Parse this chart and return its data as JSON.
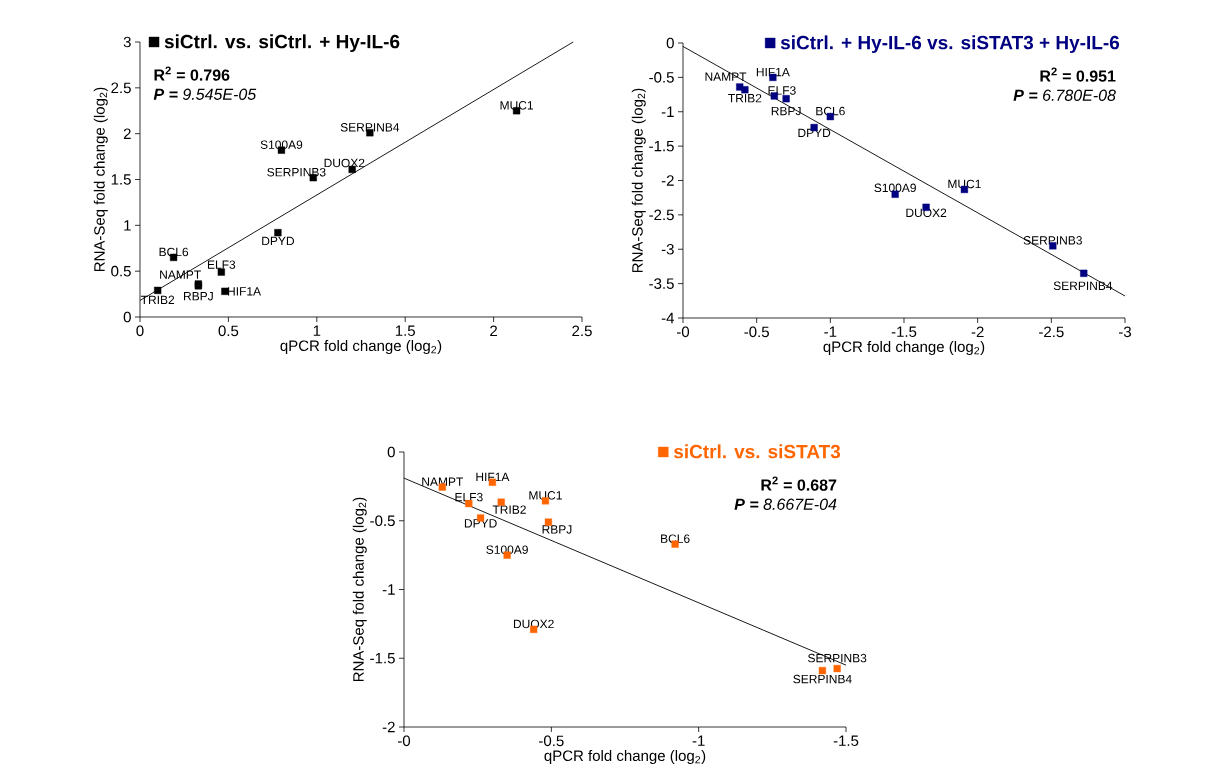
{
  "chart_data": [
    {
      "type": "scatter",
      "xlabel": "qPCR fold change (log$_{2}$)",
      "ylabel": "RNA-Seq fold change (log$_{2}$)",
      "xlim": [
        0,
        2.5
      ],
      "ylim": [
        0,
        3
      ],
      "xticks": [
        0,
        0.5,
        1,
        1.5,
        2,
        2.5
      ],
      "yticks": [
        0,
        0.5,
        1,
        1.5,
        2,
        2.5,
        3
      ],
      "legend": "top left",
      "series": [
        {
          "type": "line",
          "color": "#000000",
          "x": [
            0,
            2.45
          ],
          "values": [
            0.18,
            3.0
          ]
        },
        {
          "name": "siCtrl. vs. siCtrl. + Hy-IL-6",
          "color": "#000000",
          "marker": "square",
          "x": [
            2.13,
            1.3,
            0.8,
            0.98,
            1.2,
            0.78,
            0.19,
            0.46,
            0.33,
            0.33,
            0.48,
            0.1
          ],
          "values": [
            2.25,
            2.01,
            1.82,
            1.52,
            1.61,
            0.92,
            0.65,
            0.49,
            0.36,
            0.34,
            0.28,
            0.29
          ]
        }
      ],
      "annotations": [
        "R$^{2}$ = 0.796",
        "**P =** 9.545E-05",
        {
          "text": "MUC1",
          "x": 2.13,
          "y": 2.25
        },
        {
          "text": "SERPINB4",
          "x": 1.3,
          "y": 2.01
        },
        {
          "text": "S100A9",
          "x": 0.8,
          "y": 1.82
        },
        {
          "text": "SERPINB3",
          "x": 0.98,
          "y": 1.52
        },
        {
          "text": "DUOX2",
          "x": 1.2,
          "y": 1.61
        },
        {
          "text": "DPYD",
          "x": 0.78,
          "y": 0.92
        },
        {
          "text": "BCL6",
          "x": 0.19,
          "y": 0.65
        },
        {
          "text": "ELF3",
          "x": 0.46,
          "y": 0.49
        },
        {
          "text": "NAMPT",
          "x": 0.33,
          "y": 0.36
        },
        {
          "text": "RBPJ",
          "x": 0.33,
          "y": 0.34
        },
        {
          "text": "HIF1A",
          "x": 0.48,
          "y": 0.28
        },
        {
          "text": "TRIB2",
          "x": 0.1,
          "y": 0.29
        }
      ]
    },
    {
      "type": "scatter",
      "xlabel": "qPCR fold change (log$_{2}$)",
      "ylabel": "RNA-Seq fold change (log$_{2}$)",
      "xlim": [
        0,
        -3
      ],
      "ylim": [
        -4,
        0
      ],
      "xticks": [
        {
          "value": 0,
          "label": "-0"
        },
        -0.5,
        -1,
        -1.5,
        -2,
        -2.5,
        -3
      ],
      "yticks": [
        -4,
        -3.5,
        -3,
        -2.5,
        -2,
        -1.5,
        -1,
        -0.5,
        0
      ],
      "legend": "top right",
      "series": [
        {
          "type": "line",
          "color": "#000000",
          "x": [
            0,
            -3
          ],
          "values": [
            -0.05,
            -3.68
          ]
        },
        {
          "name": "siCtrl. + Hy-IL-6 vs. siSTAT3 + Hy-IL-6",
          "color": "#000080",
          "marker": "square",
          "x": [
            -0.385,
            -0.42,
            -0.61,
            -0.62,
            -0.7,
            -1.0,
            -0.89,
            -1.44,
            -1.65,
            -1.91,
            -2.51,
            -2.72
          ],
          "values": [
            -0.64,
            -0.68,
            -0.5,
            -0.77,
            -0.81,
            -1.07,
            -1.23,
            -2.2,
            -2.39,
            -2.13,
            -2.95,
            -3.35
          ]
        }
      ],
      "annotations": [
        "R$^{2}$ = 0.951",
        "**P =** 6.780E-08",
        {
          "text": "NAMPT",
          "x": -0.385,
          "y": -0.64
        },
        {
          "text": "TRIB2",
          "x": -0.42,
          "y": -0.68
        },
        {
          "text": "HIF1A",
          "x": -0.61,
          "y": -0.5
        },
        {
          "text": "ELF3",
          "x": -0.62,
          "y": -0.77
        },
        {
          "text": "RBPJ",
          "x": -0.7,
          "y": -0.81
        },
        {
          "text": "BCL6",
          "x": -1.0,
          "y": -1.07
        },
        {
          "text": "DPYD",
          "x": -0.89,
          "y": -1.23
        },
        {
          "text": "S100A9",
          "x": -1.44,
          "y": -2.2
        },
        {
          "text": "DUOX2",
          "x": -1.65,
          "y": -2.39
        },
        {
          "text": "MUC1",
          "x": -1.91,
          "y": -2.13
        },
        {
          "text": "SERPINB3",
          "x": -2.51,
          "y": -2.95
        },
        {
          "text": "SERPINB4",
          "x": -2.72,
          "y": -3.35
        }
      ]
    },
    {
      "type": "scatter",
      "xlabel": "qPCR fold change (log$_{2}$)",
      "ylabel": "RNA-Seq fold change (log$_{2}$)",
      "xlim": [
        0,
        -1.5
      ],
      "ylim": [
        -2,
        0
      ],
      "xticks": [
        {
          "value": 0,
          "label": "-0"
        },
        -0.5,
        -1,
        -1.5
      ],
      "yticks": [
        -2,
        -1.5,
        -1,
        -0.5,
        0
      ],
      "legend": "top right",
      "series": [
        {
          "type": "line",
          "color": "#000000",
          "x": [
            0,
            -1.5
          ],
          "values": [
            -0.19,
            -1.55
          ]
        },
        {
          "name": "siCtrl. vs. siSTAT3",
          "color": "#ff6600",
          "marker": "square",
          "x": [
            -0.13,
            -0.3,
            -0.22,
            -0.33,
            -0.48,
            -0.26,
            -0.49,
            -0.35,
            -0.92,
            -0.44,
            -1.47,
            -1.42
          ],
          "values": [
            -0.255,
            -0.22,
            -0.375,
            -0.365,
            -0.355,
            -0.48,
            -0.51,
            -0.75,
            -0.67,
            -1.29,
            -1.575,
            -1.59
          ]
        }
      ],
      "annotations": [
        "R$^{2}$ = 0.687",
        "**P =** 8.667E-04",
        {
          "text": "NAMPT",
          "x": -0.13,
          "y": -0.255
        },
        {
          "text": "HIF1A",
          "x": -0.3,
          "y": -0.22
        },
        {
          "text": "ELF3",
          "x": -0.22,
          "y": -0.375
        },
        {
          "text": "TRIB2",
          "x": -0.33,
          "y": -0.365
        },
        {
          "text": "MUC1",
          "x": -0.48,
          "y": -0.355
        },
        {
          "text": "DPYD",
          "x": -0.26,
          "y": -0.48
        },
        {
          "text": "RBPJ",
          "x": -0.49,
          "y": -0.51
        },
        {
          "text": "S100A9",
          "x": -0.35,
          "y": -0.75
        },
        {
          "text": "BCL6",
          "x": -0.92,
          "y": -0.67
        },
        {
          "text": "DUOX2",
          "x": -0.44,
          "y": -1.29
        },
        {
          "text": "SERPINB3",
          "x": -1.47,
          "y": -1.575
        },
        {
          "text": "SERPINB4",
          "x": -1.42,
          "y": -1.59
        }
      ]
    }
  ]
}
